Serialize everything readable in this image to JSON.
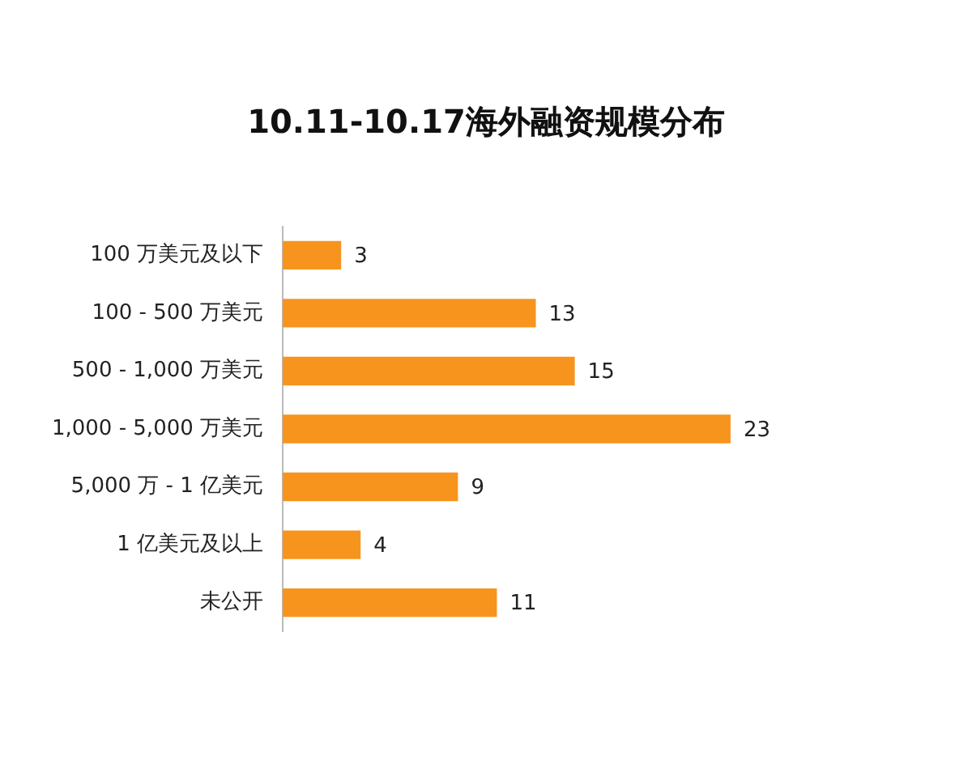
{
  "chart_data": {
    "type": "bar",
    "orientation": "horizontal",
    "title": "10.11-10.17海外融资规模分布",
    "categories": [
      "100 万美元及以下",
      "100 - 500 万美元",
      "500 - 1,000 万美元",
      "1,000 - 5,000 万美元",
      "5,000 万 - 1 亿美元",
      "1 亿美元及以上",
      "未公开"
    ],
    "values": [
      3,
      13,
      15,
      23,
      9,
      4,
      11
    ],
    "color": "#f7941d",
    "data_labels": true,
    "legend": false
  }
}
